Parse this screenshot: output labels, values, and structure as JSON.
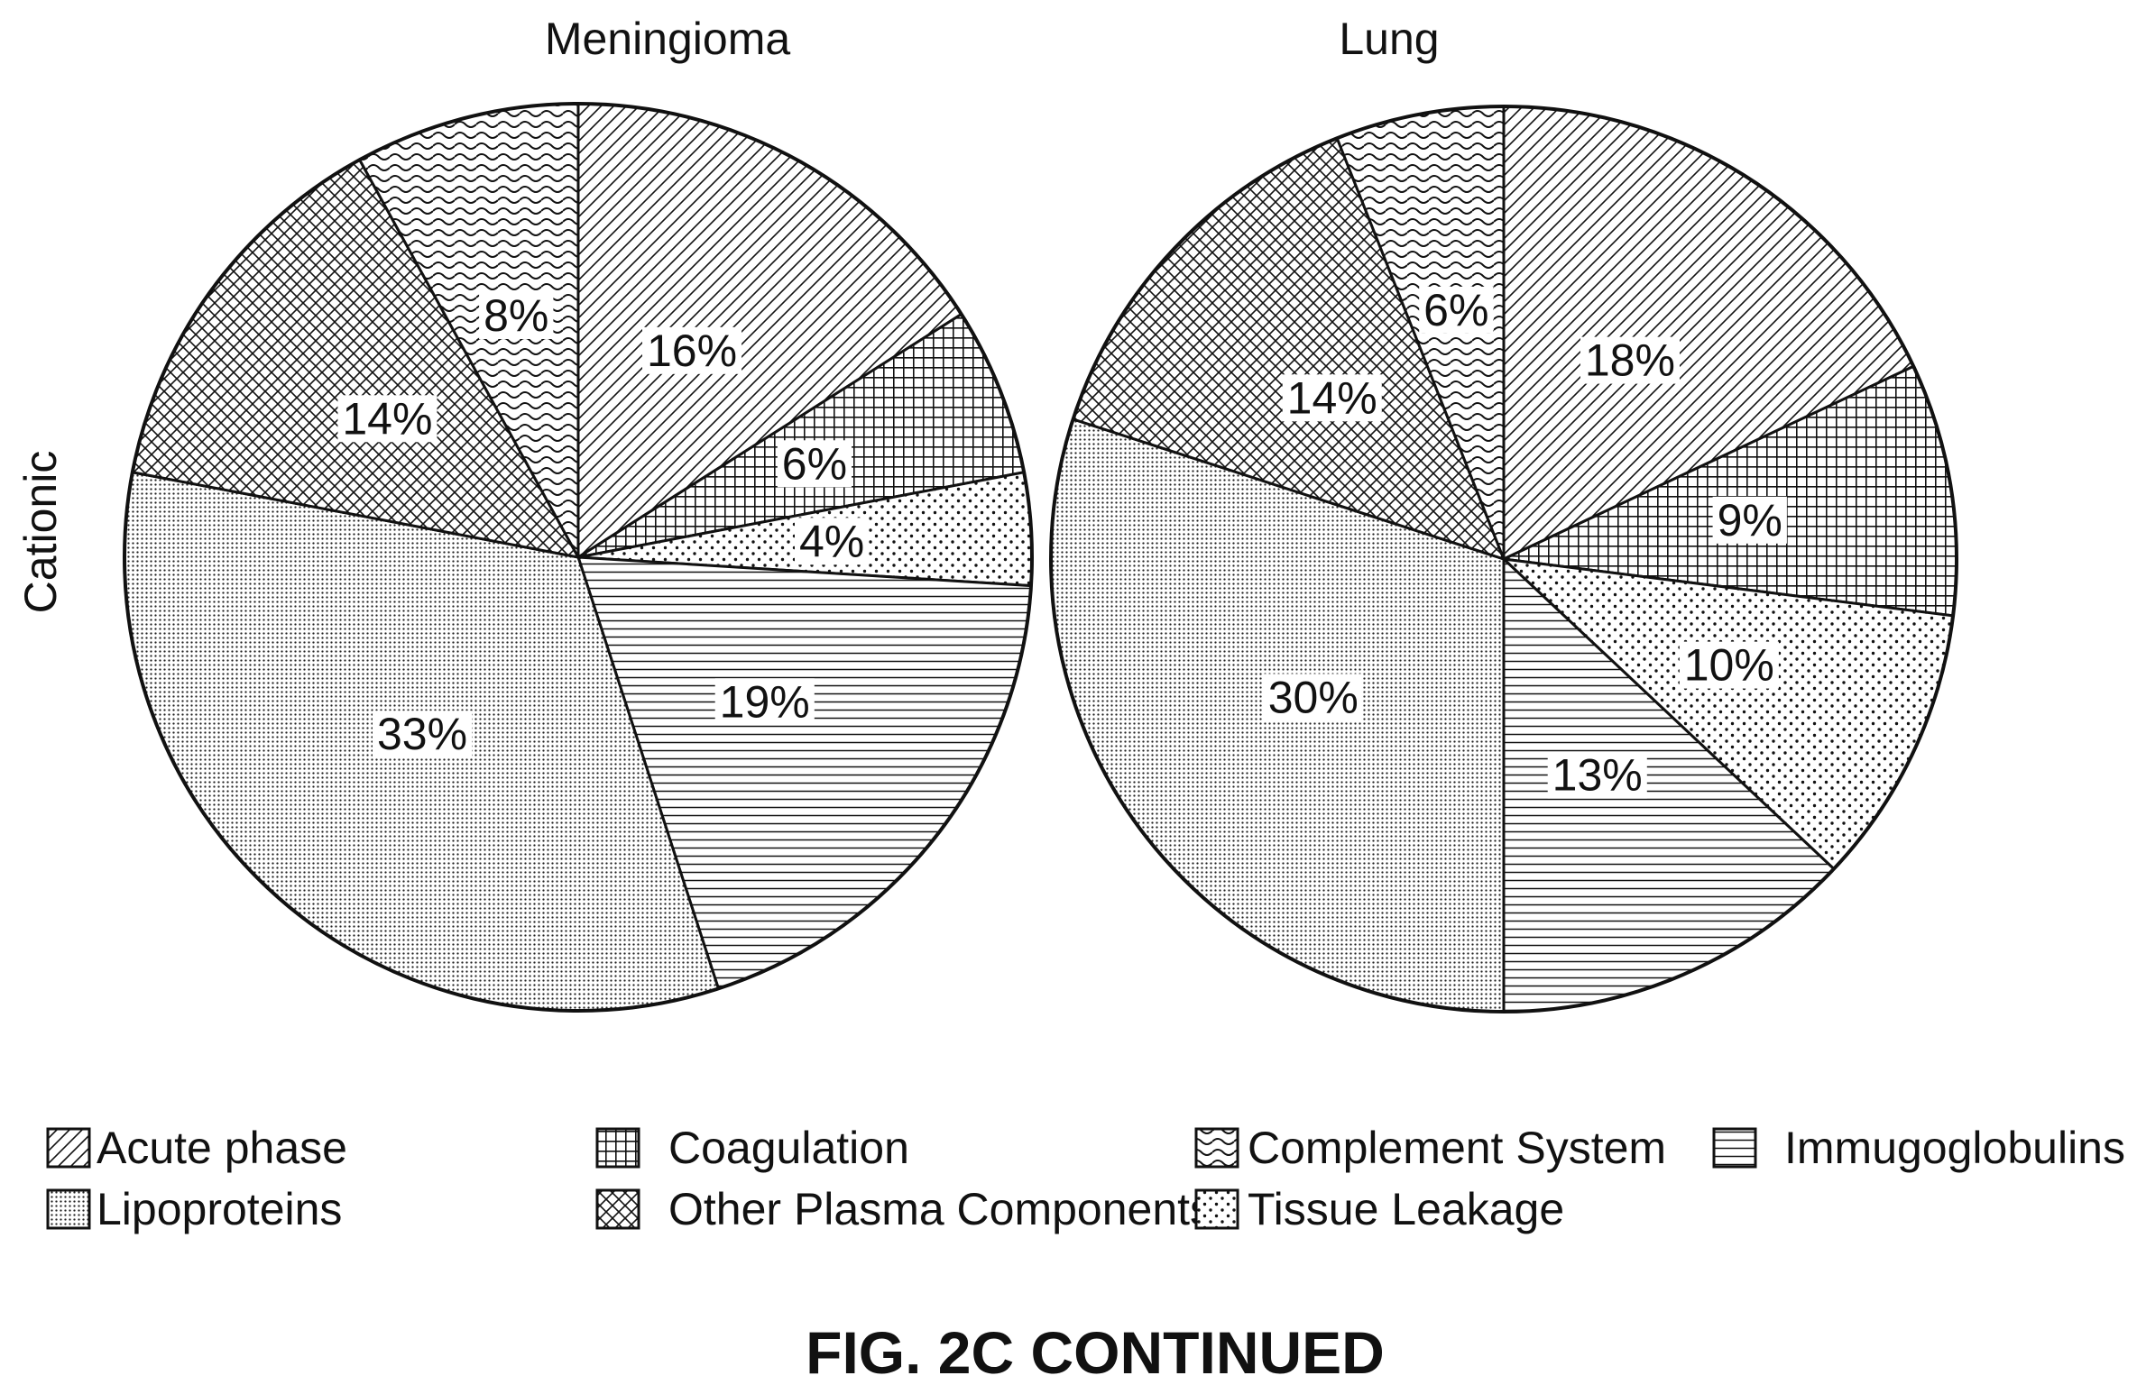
{
  "figure": {
    "row_label": "Cationic",
    "caption": "FIG. 2C CONTINUED"
  },
  "legend": {
    "items": [
      {
        "label": "Acute phase",
        "pattern": "diagonal-hatch"
      },
      {
        "label": "Coagulation",
        "pattern": "grid"
      },
      {
        "label": "Complement System",
        "pattern": "wave"
      },
      {
        "label": "Immugoglobulins",
        "pattern": "horizontal-lines"
      },
      {
        "label": "Lipoproteins",
        "pattern": "fine-dots"
      },
      {
        "label": "Other Plasma Components",
        "pattern": "crosshatch"
      },
      {
        "label": "Tissue Leakage",
        "pattern": "sparse-dots"
      }
    ]
  },
  "chart_data": [
    {
      "type": "pie",
      "title": "Meningioma",
      "slices": [
        {
          "category": "Acute phase",
          "value": 16,
          "label": "16%"
        },
        {
          "category": "Coagulation",
          "value": 6,
          "label": "6%"
        },
        {
          "category": "Tissue Leakage",
          "value": 4,
          "label": "4%"
        },
        {
          "category": "Immugoglobulins",
          "value": 19,
          "label": "19%"
        },
        {
          "category": "Lipoproteins",
          "value": 33,
          "label": "33%"
        },
        {
          "category": "Other Plasma Components",
          "value": 14,
          "label": "14%"
        },
        {
          "category": "Complement System",
          "value": 8,
          "label": "8%"
        }
      ]
    },
    {
      "type": "pie",
      "title": "Lung",
      "slices": [
        {
          "category": "Acute phase",
          "value": 18,
          "label": "18%"
        },
        {
          "category": "Coagulation",
          "value": 9,
          "label": "9%"
        },
        {
          "category": "Tissue Leakage",
          "value": 10,
          "label": "10%"
        },
        {
          "category": "Immugoglobulins",
          "value": 13,
          "label": "13%"
        },
        {
          "category": "Lipoproteins",
          "value": 30,
          "label": "30%"
        },
        {
          "category": "Other Plasma Components",
          "value": 14,
          "label": "14%"
        },
        {
          "category": "Complement System",
          "value": 6,
          "label": "6%"
        }
      ]
    }
  ]
}
